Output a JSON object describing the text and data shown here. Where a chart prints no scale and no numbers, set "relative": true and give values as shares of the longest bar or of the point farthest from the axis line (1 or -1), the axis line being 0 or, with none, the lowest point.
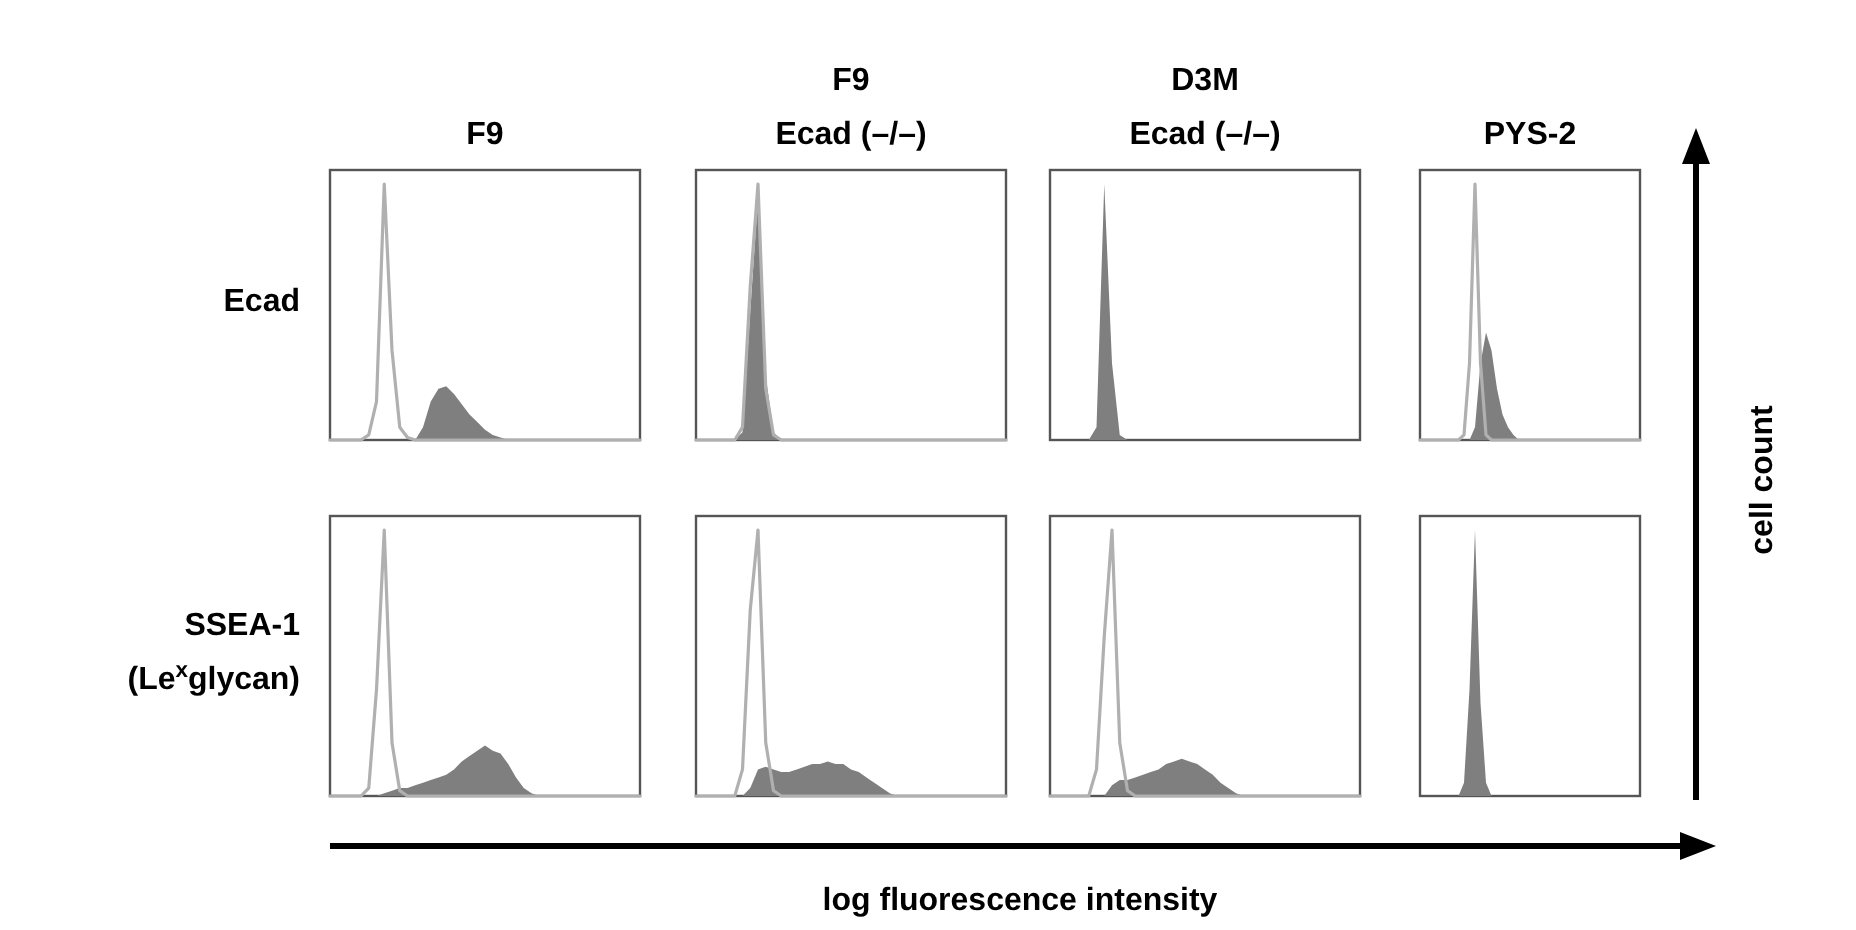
{
  "chart_data": [
    {
      "type": "area",
      "relative": true,
      "title": "F9",
      "ylabel": "Ecad",
      "categories": [
        null,
        null,
        null,
        null,
        null,
        null,
        null,
        null,
        null,
        null,
        null,
        null,
        null,
        null,
        null,
        null,
        null,
        null,
        null,
        null,
        null,
        null,
        null,
        null,
        null,
        null,
        null,
        null,
        null,
        null,
        null,
        null,
        null,
        null,
        null,
        null,
        null,
        null,
        null,
        null,
        null
      ],
      "series": [
        {
          "type": "area",
          "color": "#7f7f7f",
          "values": [
            0,
            0,
            0,
            0,
            0,
            0,
            0,
            0,
            0,
            0,
            0,
            0,
            0.05,
            0.15,
            0.2,
            0.21,
            0.18,
            0.14,
            0.1,
            0.07,
            0.04,
            0.02,
            0.01,
            0,
            0,
            0,
            0,
            0,
            0,
            0,
            0,
            0,
            0,
            0,
            0,
            0,
            0,
            0,
            0,
            0,
            0
          ]
        },
        {
          "type": "line",
          "color": "#b0b0b0",
          "values": [
            0,
            0,
            0,
            0,
            0,
            0.02,
            0.15,
            1,
            0.35,
            0.05,
            0.01,
            0,
            0,
            0,
            0,
            0,
            0,
            0,
            0,
            0,
            0,
            0,
            0,
            0,
            0,
            0,
            0,
            0,
            0,
            0,
            0,
            0,
            0,
            0,
            0,
            0,
            0,
            0,
            0,
            0,
            0
          ]
        }
      ]
    },
    {
      "type": "area",
      "relative": true,
      "title": "F9\nEcad (–/–)",
      "categories": [
        null,
        null,
        null,
        null,
        null,
        null,
        null,
        null,
        null,
        null,
        null,
        null,
        null,
        null,
        null,
        null,
        null,
        null,
        null,
        null,
        null,
        null,
        null,
        null,
        null,
        null,
        null,
        null,
        null,
        null,
        null,
        null,
        null,
        null,
        null,
        null,
        null,
        null,
        null,
        null,
        null
      ],
      "series": [
        {
          "type": "area",
          "color": "#7f7f7f",
          "values": [
            0,
            0,
            0,
            0,
            0,
            0,
            0.03,
            0.5,
            0.95,
            0.25,
            0.03,
            0,
            0,
            0,
            0,
            0,
            0,
            0,
            0,
            0,
            0,
            0,
            0,
            0,
            0,
            0,
            0,
            0,
            0,
            0,
            0,
            0,
            0,
            0,
            0,
            0,
            0,
            0,
            0,
            0,
            0
          ]
        },
        {
          "type": "line",
          "color": "#b0b0b0",
          "values": [
            0,
            0,
            0,
            0,
            0,
            0,
            0.05,
            0.6,
            1,
            0.2,
            0.02,
            0,
            0,
            0,
            0,
            0,
            0,
            0,
            0,
            0,
            0,
            0,
            0,
            0,
            0,
            0,
            0,
            0,
            0,
            0,
            0,
            0,
            0,
            0,
            0,
            0,
            0,
            0,
            0,
            0,
            0
          ]
        }
      ]
    },
    {
      "type": "area",
      "relative": true,
      "title": "D3M\nEcad (–/–)",
      "categories": [
        null,
        null,
        null,
        null,
        null,
        null,
        null,
        null,
        null,
        null,
        null,
        null,
        null,
        null,
        null,
        null,
        null,
        null,
        null,
        null,
        null,
        null,
        null,
        null,
        null,
        null,
        null,
        null,
        null,
        null,
        null,
        null,
        null,
        null,
        null,
        null,
        null,
        null,
        null,
        null,
        null
      ],
      "series": [
        {
          "type": "area",
          "color": "#7f7f7f",
          "values": [
            0,
            0,
            0,
            0,
            0,
            0,
            0.05,
            1,
            0.3,
            0.02,
            0,
            0,
            0,
            0,
            0,
            0,
            0,
            0,
            0,
            0,
            0,
            0,
            0,
            0,
            0,
            0,
            0,
            0,
            0,
            0,
            0,
            0,
            0,
            0,
            0,
            0,
            0,
            0,
            0,
            0,
            0
          ]
        }
      ]
    },
    {
      "type": "area",
      "relative": true,
      "title": "PYS-2",
      "categories": [
        null,
        null,
        null,
        null,
        null,
        null,
        null,
        null,
        null,
        null,
        null,
        null,
        null,
        null,
        null,
        null,
        null,
        null,
        null,
        null,
        null,
        null,
        null,
        null,
        null,
        null,
        null,
        null,
        null,
        null,
        null,
        null,
        null,
        null,
        null,
        null,
        null,
        null,
        null,
        null,
        null
      ],
      "series": [
        {
          "type": "area",
          "color": "#7f7f7f",
          "values": [
            0,
            0,
            0,
            0,
            0,
            0,
            0,
            0,
            0,
            0,
            0.05,
            0.3,
            0.42,
            0.35,
            0.2,
            0.1,
            0.05,
            0.02,
            0,
            0,
            0,
            0,
            0,
            0,
            0,
            0,
            0,
            0,
            0,
            0,
            0,
            0,
            0,
            0,
            0,
            0,
            0,
            0,
            0,
            0,
            0
          ]
        },
        {
          "type": "line",
          "color": "#b0b0b0",
          "values": [
            0,
            0,
            0,
            0,
            0,
            0,
            0,
            0,
            0.02,
            0.3,
            1,
            0.3,
            0.02,
            0,
            0,
            0,
            0,
            0,
            0,
            0,
            0,
            0,
            0,
            0,
            0,
            0,
            0,
            0,
            0,
            0,
            0,
            0,
            0,
            0,
            0,
            0,
            0,
            0,
            0,
            0,
            0
          ]
        }
      ]
    },
    {
      "type": "area",
      "relative": true,
      "ylabel": "SSEA-1\n(Le$^{x}$glycan)",
      "categories": [
        null,
        null,
        null,
        null,
        null,
        null,
        null,
        null,
        null,
        null,
        null,
        null,
        null,
        null,
        null,
        null,
        null,
        null,
        null,
        null,
        null,
        null,
        null,
        null,
        null,
        null,
        null,
        null,
        null,
        null,
        null,
        null,
        null,
        null,
        null,
        null,
        null,
        null,
        null,
        null,
        null
      ],
      "series": [
        {
          "type": "area",
          "color": "#7f7f7f",
          "values": [
            0,
            0,
            0,
            0,
            0,
            0,
            0,
            0.01,
            0.02,
            0.03,
            0.03,
            0.04,
            0.05,
            0.06,
            0.07,
            0.08,
            0.1,
            0.13,
            0.15,
            0.17,
            0.19,
            0.17,
            0.16,
            0.12,
            0.07,
            0.03,
            0.01,
            0,
            0,
            0,
            0,
            0,
            0,
            0,
            0,
            0,
            0,
            0,
            0,
            0,
            0
          ]
        },
        {
          "type": "line",
          "color": "#b0b0b0",
          "values": [
            0,
            0,
            0,
            0,
            0,
            0.03,
            0.4,
            1,
            0.2,
            0.02,
            0,
            0,
            0,
            0,
            0,
            0,
            0,
            0,
            0,
            0,
            0,
            0,
            0,
            0,
            0,
            0,
            0,
            0,
            0,
            0,
            0,
            0,
            0,
            0,
            0,
            0,
            0,
            0,
            0,
            0,
            0
          ]
        }
      ]
    },
    {
      "type": "area",
      "relative": true,
      "categories": [
        null,
        null,
        null,
        null,
        null,
        null,
        null,
        null,
        null,
        null,
        null,
        null,
        null,
        null,
        null,
        null,
        null,
        null,
        null,
        null,
        null,
        null,
        null,
        null,
        null,
        null,
        null,
        null,
        null,
        null,
        null,
        null,
        null,
        null,
        null,
        null,
        null,
        null,
        null,
        null,
        null
      ],
      "series": [
        {
          "type": "area",
          "color": "#7f7f7f",
          "values": [
            0,
            0,
            0,
            0,
            0,
            0,
            0,
            0.03,
            0.1,
            0.11,
            0.1,
            0.09,
            0.09,
            0.1,
            0.11,
            0.12,
            0.12,
            0.13,
            0.12,
            0.12,
            0.1,
            0.09,
            0.07,
            0.05,
            0.03,
            0.01,
            0,
            0,
            0,
            0,
            0,
            0,
            0,
            0,
            0,
            0,
            0,
            0,
            0,
            0,
            0
          ]
        },
        {
          "type": "line",
          "color": "#b0b0b0",
          "values": [
            0,
            0,
            0,
            0,
            0,
            0,
            0.1,
            0.7,
            1,
            0.2,
            0.02,
            0,
            0,
            0,
            0,
            0,
            0,
            0,
            0,
            0,
            0,
            0,
            0,
            0,
            0,
            0,
            0,
            0,
            0,
            0,
            0,
            0,
            0,
            0,
            0,
            0,
            0,
            0,
            0,
            0,
            0
          ]
        }
      ]
    },
    {
      "type": "area",
      "relative": true,
      "categories": [
        null,
        null,
        null,
        null,
        null,
        null,
        null,
        null,
        null,
        null,
        null,
        null,
        null,
        null,
        null,
        null,
        null,
        null,
        null,
        null,
        null,
        null,
        null,
        null,
        null,
        null,
        null,
        null,
        null,
        null,
        null,
        null,
        null,
        null,
        null,
        null,
        null,
        null,
        null,
        null,
        null
      ],
      "series": [
        {
          "type": "area",
          "color": "#7f7f7f",
          "values": [
            0,
            0,
            0,
            0,
            0,
            0,
            0,
            0,
            0.04,
            0.06,
            0.06,
            0.07,
            0.08,
            0.09,
            0.1,
            0.12,
            0.13,
            0.14,
            0.13,
            0.12,
            0.1,
            0.08,
            0.05,
            0.03,
            0.01,
            0,
            0,
            0,
            0,
            0,
            0,
            0,
            0,
            0,
            0,
            0,
            0,
            0,
            0,
            0,
            0
          ]
        },
        {
          "type": "line",
          "color": "#b0b0b0",
          "values": [
            0,
            0,
            0,
            0,
            0,
            0,
            0.1,
            0.6,
            1,
            0.2,
            0.02,
            0,
            0,
            0,
            0,
            0,
            0,
            0,
            0,
            0,
            0,
            0,
            0,
            0,
            0,
            0,
            0,
            0,
            0,
            0,
            0,
            0,
            0,
            0,
            0,
            0,
            0,
            0,
            0,
            0,
            0
          ]
        }
      ]
    },
    {
      "type": "area",
      "relative": true,
      "categories": [
        null,
        null,
        null,
        null,
        null,
        null,
        null,
        null,
        null,
        null,
        null,
        null,
        null,
        null,
        null,
        null,
        null,
        null,
        null,
        null,
        null,
        null,
        null,
        null,
        null,
        null,
        null,
        null,
        null,
        null,
        null,
        null,
        null,
        null,
        null,
        null,
        null,
        null,
        null,
        null,
        null
      ],
      "series": [
        {
          "type": "area",
          "color": "#7f7f7f",
          "values": [
            0,
            0,
            0,
            0,
            0,
            0,
            0,
            0,
            0.05,
            0.4,
            1,
            0.35,
            0.05,
            0,
            0,
            0,
            0,
            0,
            0,
            0,
            0,
            0,
            0,
            0,
            0,
            0,
            0,
            0,
            0,
            0,
            0,
            0,
            0,
            0,
            0,
            0,
            0,
            0,
            0,
            0,
            0
          ]
        }
      ]
    },
    {
      "type": "other",
      "annotations": [
        "cell count",
        "log fluorescence intensity"
      ]
    }
  ]
}
